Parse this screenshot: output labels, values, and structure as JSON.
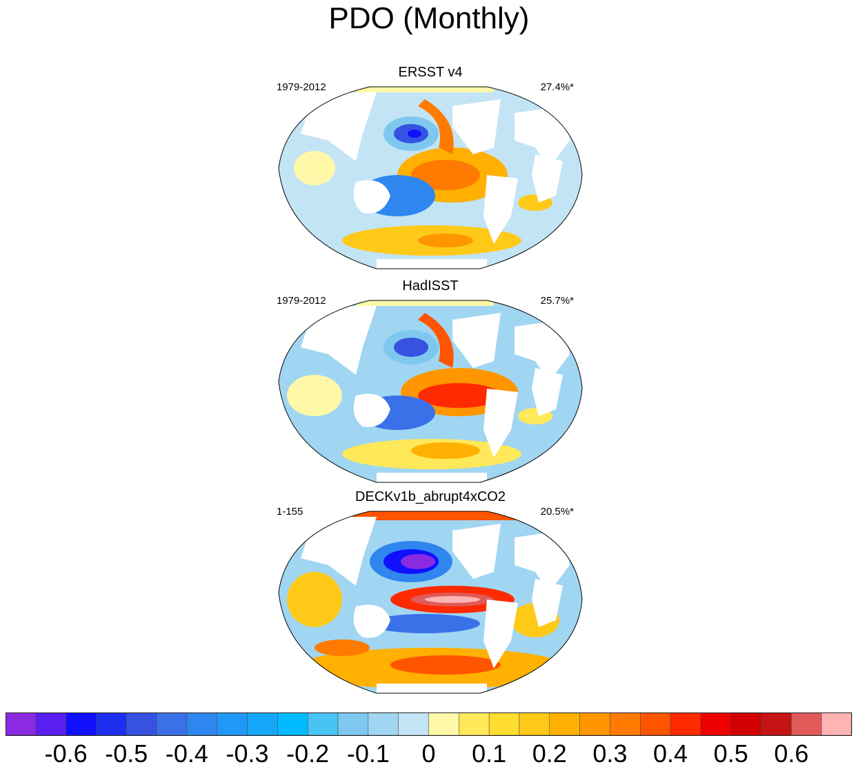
{
  "title": "PDO (Monthly)",
  "chart_data": {
    "type": "heatmap",
    "title": "PDO (Monthly)",
    "panels": [
      {
        "name": "ERSST v4",
        "period": "1979-2012",
        "variance": "27.4%*"
      },
      {
        "name": "HadISST",
        "period": "1979-2012",
        "variance": "25.7%*"
      },
      {
        "name": "DECKv1b_abrupt4xCO2",
        "period": "1-155",
        "variance": "20.5%*"
      }
    ],
    "colorbar": {
      "tick_labels": [
        "-0.6",
        "-0.5",
        "-0.4",
        "-0.3",
        "-0.2",
        "-0.1",
        "0",
        "0.1",
        "0.2",
        "0.3",
        "0.4",
        "0.5",
        "0.6"
      ],
      "colors": [
        "#8a2be2",
        "#5a1ef0",
        "#1010ff",
        "#1e2eee",
        "#3553e0",
        "#3a70e8",
        "#2f86ee",
        "#2098f8",
        "#16a8f8",
        "#00bbff",
        "#47c3f4",
        "#7ec8ef",
        "#a0d6f2",
        "#c3e4f4",
        "#fff8a8",
        "#ffe85a",
        "#ffdd30",
        "#ffc918",
        "#ffb000",
        "#ff9600",
        "#ff7a00",
        "#ff5500",
        "#ff2a00",
        "#ee0000",
        "#d20000",
        "#c41414",
        "#e05a5a",
        "#ffb4b4"
      ]
    }
  }
}
